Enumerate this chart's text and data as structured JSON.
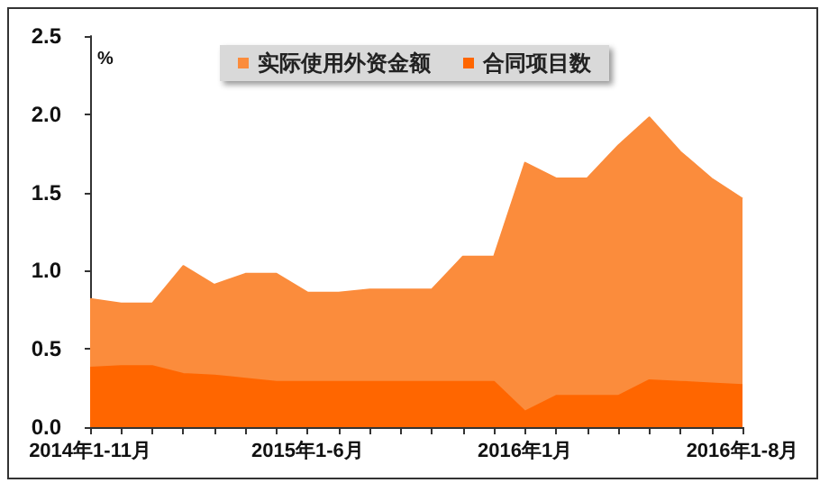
{
  "chart_data": {
    "type": "area",
    "ylabel": "%",
    "categories": [
      "2014年1-11月",
      null,
      null,
      null,
      null,
      null,
      null,
      "2015年1-6月",
      null,
      null,
      null,
      null,
      null,
      null,
      "2016年1月",
      null,
      null,
      null,
      null,
      null,
      null,
      "2016年1-8月"
    ],
    "series": [
      {
        "name": "实际使用外资金额",
        "color": "#fb8c3c",
        "values": [
          0.82,
          0.79,
          0.79,
          1.03,
          0.91,
          0.98,
          0.98,
          0.86,
          0.86,
          0.88,
          0.88,
          0.88,
          1.09,
          1.09,
          1.69,
          1.59,
          1.59,
          1.8,
          1.98,
          1.76,
          1.59,
          1.46
        ]
      },
      {
        "name": "合同项目数",
        "color": "#ff6600",
        "values": [
          0.38,
          0.39,
          0.39,
          0.34,
          0.33,
          0.31,
          0.29,
          0.29,
          0.29,
          0.29,
          0.29,
          0.29,
          0.29,
          0.29,
          0.1,
          0.2,
          0.2,
          0.2,
          0.3,
          0.29,
          0.28,
          0.27
        ]
      }
    ],
    "ylim": [
      0,
      2.5
    ],
    "yticks": [
      {
        "value": 0,
        "label": "0.0"
      },
      {
        "value": 0.5,
        "label": "0.5"
      },
      {
        "value": 1,
        "label": "1.0"
      },
      {
        "value": 1.5,
        "label": "1.5"
      },
      {
        "value": 2,
        "label": "2.0"
      },
      {
        "value": 2.5,
        "label": "2.5"
      }
    ],
    "grid": false,
    "legend": "top"
  }
}
